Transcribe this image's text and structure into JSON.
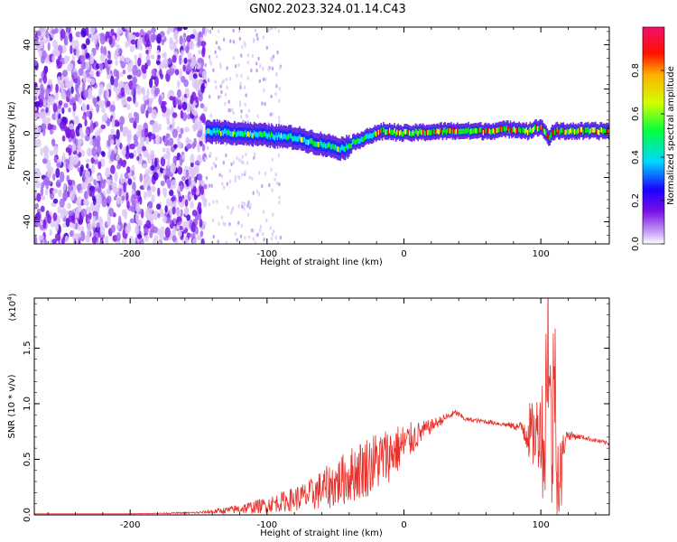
{
  "title": "GN02.2023.324.01.14.C43",
  "chart_data": [
    {
      "type": "heatmap",
      "title": "",
      "xlabel": "Height of straight line (km)",
      "ylabel": "Frequency (Hz)",
      "xlim": [
        -270,
        150
      ],
      "ylim": [
        -50,
        48
      ],
      "xticks": [
        -200,
        -100,
        0,
        100
      ],
      "xtick_labels": [
        "-200",
        "-100",
        "0",
        "100"
      ],
      "yticks": [
        -40,
        -20,
        0,
        20,
        40
      ],
      "ytick_labels": [
        "-40",
        "-20",
        "0",
        "20",
        "40"
      ],
      "colorbar": {
        "label": "Normalized spectral amplitude",
        "range": [
          0,
          1
        ],
        "ticks": [
          0.0,
          0.2,
          0.4,
          0.6,
          0.8
        ],
        "tick_labels": [
          "0.0",
          "0.2",
          "0.4",
          "0.6",
          "0.8"
        ],
        "colormap": [
          "#ffffff",
          "#7b1fe0",
          "#1a00ff",
          "#00e6ff",
          "#00ff00",
          "#ffff00",
          "#ff0000",
          "#ff0080"
        ]
      },
      "band_center": {
        "x": [
          -145,
          -120,
          -100,
          -80,
          -60,
          -45,
          -30,
          -15,
          0,
          30,
          60,
          80,
          90,
          100,
          105,
          110,
          150
        ],
        "y": [
          1,
          0,
          -1,
          -2,
          -5,
          -7,
          -2,
          1,
          0,
          1,
          1,
          2,
          1,
          3,
          -2,
          1,
          1
        ]
      },
      "noise_region": [
        -270,
        -145
      ],
      "grid": false
    },
    {
      "type": "line",
      "title": "",
      "xlabel": "Height of straight line (km)",
      "ylabel": "SNR (10 * v/v)",
      "y_multiplier_label": "(x10",
      "y_multiplier_exp": "4",
      "y_multiplier_close": ")",
      "xlim": [
        -270,
        150
      ],
      "ylim": [
        0,
        1.95
      ],
      "xticks": [
        -200,
        -100,
        0,
        100
      ],
      "xtick_labels": [
        "-200",
        "-100",
        "0",
        "100"
      ],
      "yticks": [
        0.0,
        0.5,
        1.0,
        1.5
      ],
      "ytick_labels": [
        "0.0",
        "0.5",
        "1.0",
        "1.5"
      ],
      "color": "#e8302a",
      "series": [
        {
          "x": [
            -270,
            -200,
            -150,
            -130,
            -110,
            -100,
            -85,
            -70,
            -60,
            -50,
            -40,
            -30,
            -20,
            -10,
            0,
            10,
            20,
            30,
            38,
            45,
            60,
            70,
            80,
            85,
            90,
            95,
            100,
            103,
            105,
            108,
            110,
            113,
            118,
            130,
            150
          ],
          "y": [
            0.01,
            0.01,
            0.02,
            0.04,
            0.07,
            0.09,
            0.13,
            0.17,
            0.23,
            0.28,
            0.35,
            0.42,
            0.48,
            0.55,
            0.63,
            0.72,
            0.8,
            0.87,
            0.92,
            0.86,
            0.84,
            0.82,
            0.8,
            0.79,
            0.78,
            0.7,
            0.82,
            0.6,
            1.88,
            0.35,
            1.5,
            0.15,
            0.72,
            0.7,
            0.64
          ],
          "noise_amplitude": [
            0.0,
            0.0,
            0.01,
            0.03,
            0.06,
            0.07,
            0.1,
            0.14,
            0.18,
            0.22,
            0.25,
            0.28,
            0.28,
            0.25,
            0.2,
            0.12,
            0.06,
            0.04,
            0.03,
            0.02,
            0.02,
            0.02,
            0.03,
            0.05,
            0.25,
            0.3,
            0.4,
            0.8,
            0.9,
            0.9,
            0.8,
            0.6,
            0.05,
            0.02,
            0.02
          ]
        }
      ],
      "grid": false
    }
  ]
}
